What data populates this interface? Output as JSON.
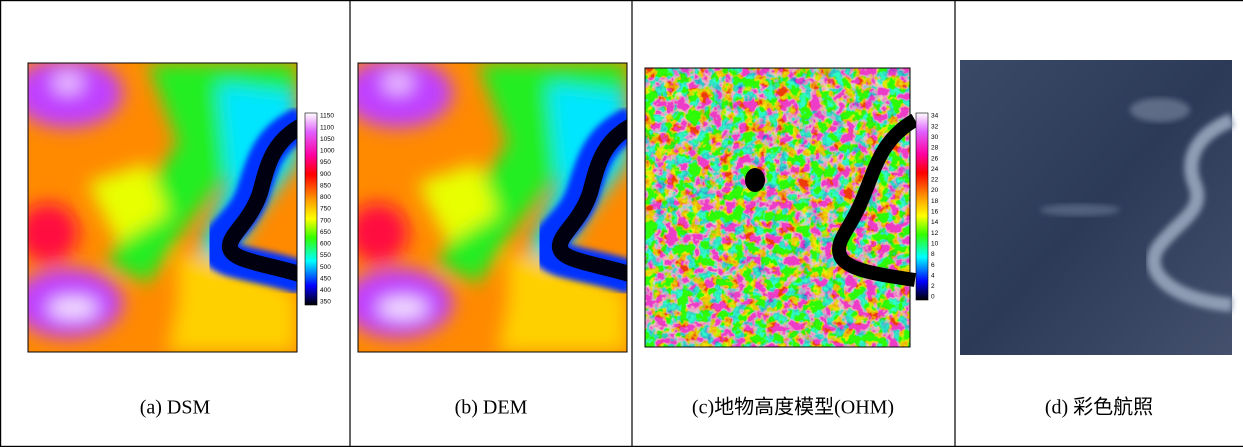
{
  "panels": [
    {
      "caption": "(a) DSM",
      "colorbar": {
        "ticks": [
          1150,
          1100,
          1050,
          1000,
          950,
          900,
          850,
          800,
          750,
          700,
          650,
          600,
          550,
          500,
          450,
          400,
          350
        ]
      }
    },
    {
      "caption": "(b) DEM"
    },
    {
      "caption": "(c)地物高度模型(OHM)",
      "colorbar": {
        "ticks": [
          34,
          32,
          30,
          28,
          26,
          24,
          22,
          20,
          18,
          16,
          14,
          12,
          10,
          8,
          6,
          4,
          2,
          0
        ]
      }
    },
    {
      "caption": "(d) 彩色航照"
    }
  ]
}
